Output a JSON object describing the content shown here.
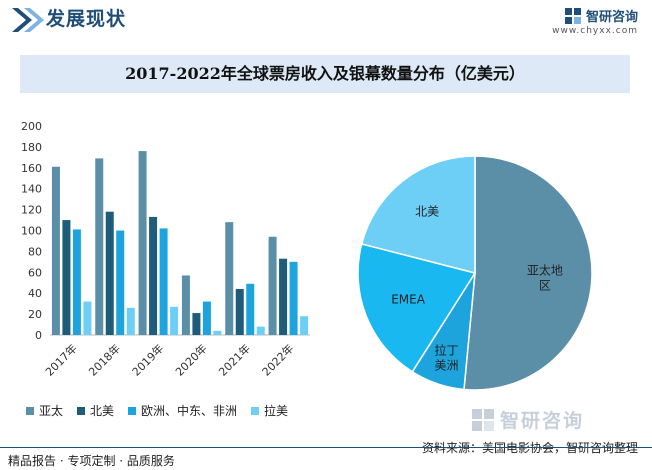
{
  "header": {
    "title": "发展现状"
  },
  "brand": {
    "logo_text": "智研咨询",
    "url": "www.chyxx.com",
    "watermark_text": "智研咨询"
  },
  "chart_title": "2017-2022年全球票房收入及银幕数量分布（亿美元）",
  "chart_data": [
    {
      "type": "bar",
      "categories": [
        "2017年",
        "2018年",
        "2019年",
        "2020年",
        "2021年",
        "2022年"
      ],
      "ylim": [
        0,
        200
      ],
      "yticks": [
        0,
        20,
        40,
        60,
        80,
        100,
        120,
        140,
        160,
        180,
        200
      ],
      "grid": false,
      "legend_placement": "bottom",
      "series": [
        {
          "name": "亚太",
          "color": "#5b8fa8",
          "values": [
            161,
            169,
            176,
            57,
            108,
            94
          ]
        },
        {
          "name": "北美",
          "color": "#1f5c7a",
          "values": [
            110,
            118,
            113,
            21,
            44,
            73
          ]
        },
        {
          "name": "欧洲、中东、非洲",
          "color": "#1ea4dc",
          "values": [
            101,
            100,
            102,
            32,
            49,
            70
          ]
        },
        {
          "name": "拉美",
          "color": "#6dcff6",
          "values": [
            32,
            26,
            27,
            4,
            8,
            18
          ]
        }
      ]
    },
    {
      "type": "pie",
      "labels": [
        "亚太地区",
        "拉丁美洲",
        "EMEA",
        "北美"
      ],
      "values": [
        51.5,
        7.5,
        20,
        21
      ],
      "colors": [
        "#5b8fa8",
        "#1ea4dc",
        "#1ab8f0",
        "#6dcff6"
      ]
    }
  ],
  "footer": {
    "left_text": "精品报告 · 专项定制 · 品质服务",
    "source_text": "资料来源：美国电影协会，智研咨询整理"
  }
}
